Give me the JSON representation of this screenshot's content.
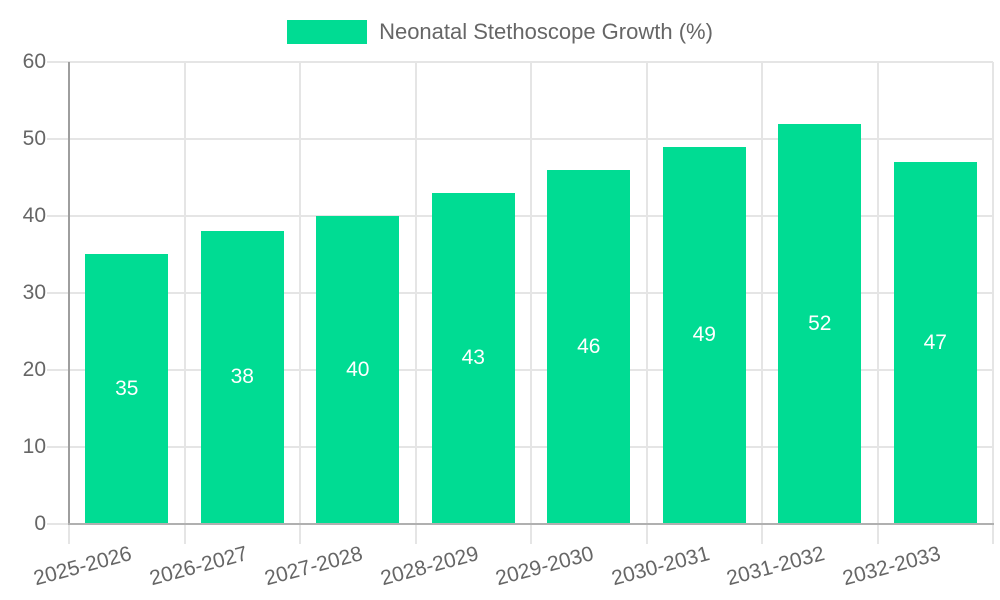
{
  "legend": {
    "label": "Neonatal Stethoscope Growth (%)",
    "position": "top"
  },
  "chart_data": {
    "type": "bar",
    "title": "",
    "xlabel": "",
    "ylabel": "",
    "categories": [
      "2025-2026",
      "2026-2027",
      "2027-2028",
      "2028-2029",
      "2029-2030",
      "2030-2031",
      "2031-2032",
      "2032-2033"
    ],
    "series": [
      {
        "name": "Neonatal Stethoscope Growth (%)",
        "values": [
          35,
          38,
          40,
          43,
          46,
          49,
          52,
          47
        ]
      }
    ],
    "bar_value_labels": [
      "35",
      "38",
      "40",
      "43",
      "46",
      "49",
      "52",
      "47"
    ],
    "ylim": [
      0,
      60
    ],
    "yticks": [
      "0",
      "10",
      "20",
      "30",
      "40",
      "50",
      "60"
    ],
    "grid": true,
    "legend_position": "top",
    "x_label_rotation_deg": -15
  },
  "colors": {
    "bar": "#00DC93",
    "grid": "#e5e5e5",
    "axis_y_line": "#9e9e9e",
    "axis_x_line": "#b0b0b0",
    "tick_label": "#666666",
    "bar_label": "#ffffff",
    "legend_label": "#666666",
    "background": "#ffffff"
  }
}
